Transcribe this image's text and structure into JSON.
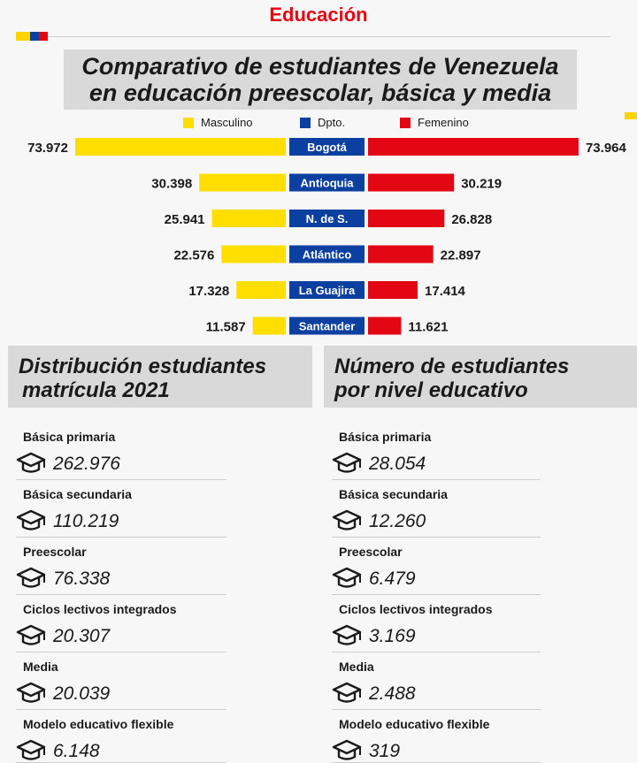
{
  "header": {
    "section": "Educación",
    "title_line1": "Comparativo de estudiantes de Venezuela",
    "title_line2": "en educación preescolar, básica y media",
    "flag_colors": [
      "#ffd400",
      "#0b3fa0",
      "#e30613"
    ]
  },
  "legend": {
    "male": "Masculino",
    "dept": "Dpto.",
    "female": "Femenino"
  },
  "colors": {
    "male": "#ffde00",
    "dept": "#0b3fa0",
    "female": "#e30613",
    "accent": "#e30613",
    "panel": "#d9d9d9"
  },
  "chart_data": {
    "type": "bar",
    "subtype": "back-to-back",
    "categories": [
      "Bogotá",
      "Antioquia",
      "N. de S.",
      "Atlántico",
      "La Guajira",
      "Santander"
    ],
    "series": [
      {
        "name": "Masculino",
        "values": [
          73972,
          30398,
          25941,
          22576,
          17328,
          11587
        ],
        "labels": [
          "73.972",
          "30.398",
          "25.941",
          "22.576",
          "17.328",
          "11.587"
        ]
      },
      {
        "name": "Femenino",
        "values": [
          73964,
          30219,
          26828,
          22897,
          17414,
          11621
        ],
        "labels": [
          "73.964",
          "30.219",
          "26.828",
          "22.897",
          "17.414",
          "11.621"
        ]
      }
    ]
  },
  "left_panel": {
    "title_line1": "Distribución estudiantes",
    "title_line2": "matrícula 2021",
    "items": [
      {
        "label": "Básica primaria",
        "value": "262.976"
      },
      {
        "label": "Básica secundaria",
        "value": "110.219"
      },
      {
        "label": "Preescolar",
        "value": "76.338"
      },
      {
        "label": "Ciclos lectivos integrados",
        "value": "20.307"
      },
      {
        "label": "Media",
        "value": "20.039"
      },
      {
        "label": "Modelo educativo flexible",
        "value": "6.148"
      }
    ]
  },
  "right_panel": {
    "title_line1": "Número de estudiantes",
    "title_line2": "por nivel educativo",
    "items": [
      {
        "label": "Básica primaria",
        "value": "28.054"
      },
      {
        "label": "Básica secundaria",
        "value": "12.260"
      },
      {
        "label": "Preescolar",
        "value": "6.479"
      },
      {
        "label": "Ciclos lectivos integrados",
        "value": "3.169"
      },
      {
        "label": "Media",
        "value": "2.488"
      },
      {
        "label": "Modelo educativo flexible",
        "value": "319"
      }
    ]
  }
}
